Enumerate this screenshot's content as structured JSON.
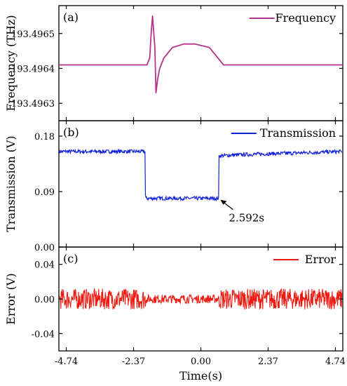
{
  "chart_data": [
    {
      "type": "line",
      "panel_label": "(a)",
      "ylabel": "Frequency (THz)",
      "yticks": [
        "193.4963",
        "193.4964",
        "193.4965"
      ],
      "yrange": [
        193.49625,
        193.49658
      ],
      "legend": "Frequency",
      "legend_position": "top-right",
      "series": [
        {
          "name": "Frequency",
          "color": "#b5338a",
          "x": [
            -5.0,
            -2.2,
            -1.9,
            -1.8,
            -1.75,
            -1.7,
            -1.62,
            -1.58,
            -1.52,
            -1.45,
            -1.3,
            -1.0,
            -0.6,
            -0.2,
            0.3,
            0.8,
            5.0
          ],
          "y": [
            193.49641,
            193.49641,
            193.49641,
            193.49643,
            193.4965,
            193.49655,
            193.49646,
            193.49633,
            193.49637,
            193.4964,
            193.49643,
            193.49646,
            193.49647,
            193.49647,
            193.49646,
            193.49641,
            193.49641
          ]
        }
      ]
    },
    {
      "type": "line",
      "panel_label": "(b)",
      "ylabel": "Transmission (V)",
      "yticks": [
        "0.00",
        "0.09",
        "0.18"
      ],
      "yrange": [
        0.0,
        0.205
      ],
      "legend": "Transmission",
      "legend_position": "top-right",
      "annotation": "2.592s",
      "series": [
        {
          "name": "Transmission",
          "color": "#1020dd",
          "noise": 0.003,
          "x": [
            -5.0,
            -1.96,
            -1.95,
            0.63,
            0.64,
            1.5,
            5.0
          ],
          "y": [
            0.155,
            0.155,
            0.079,
            0.079,
            0.148,
            0.15,
            0.155
          ]
        }
      ]
    },
    {
      "type": "line",
      "panel_label": "(c)",
      "ylabel": "Error (V)",
      "yticks": [
        "-0.04",
        "0.00",
        "0.04"
      ],
      "yrange": [
        -0.06,
        0.06
      ],
      "legend": "Error",
      "legend_position": "top-right",
      "series": [
        {
          "name": "Error",
          "color": "#ee1a10",
          "x": [
            -5.0,
            -1.95,
            -1.94,
            0.63,
            0.64,
            5.0
          ],
          "y": [
            0.0,
            0.0,
            0.0,
            0.0,
            0.0,
            0.0
          ],
          "noise_band": [
            0.012,
            0.012,
            0.005,
            0.005,
            0.012,
            0.012
          ]
        }
      ]
    }
  ],
  "x_axis": {
    "label": "Time(s)",
    "ticks": [
      "-4.74",
      "-2.37",
      "0.00",
      "2.37",
      "4.74"
    ],
    "tick_values": [
      -4.74,
      -2.37,
      0.0,
      2.37,
      4.74
    ],
    "range": [
      -5.0,
      5.0
    ]
  }
}
